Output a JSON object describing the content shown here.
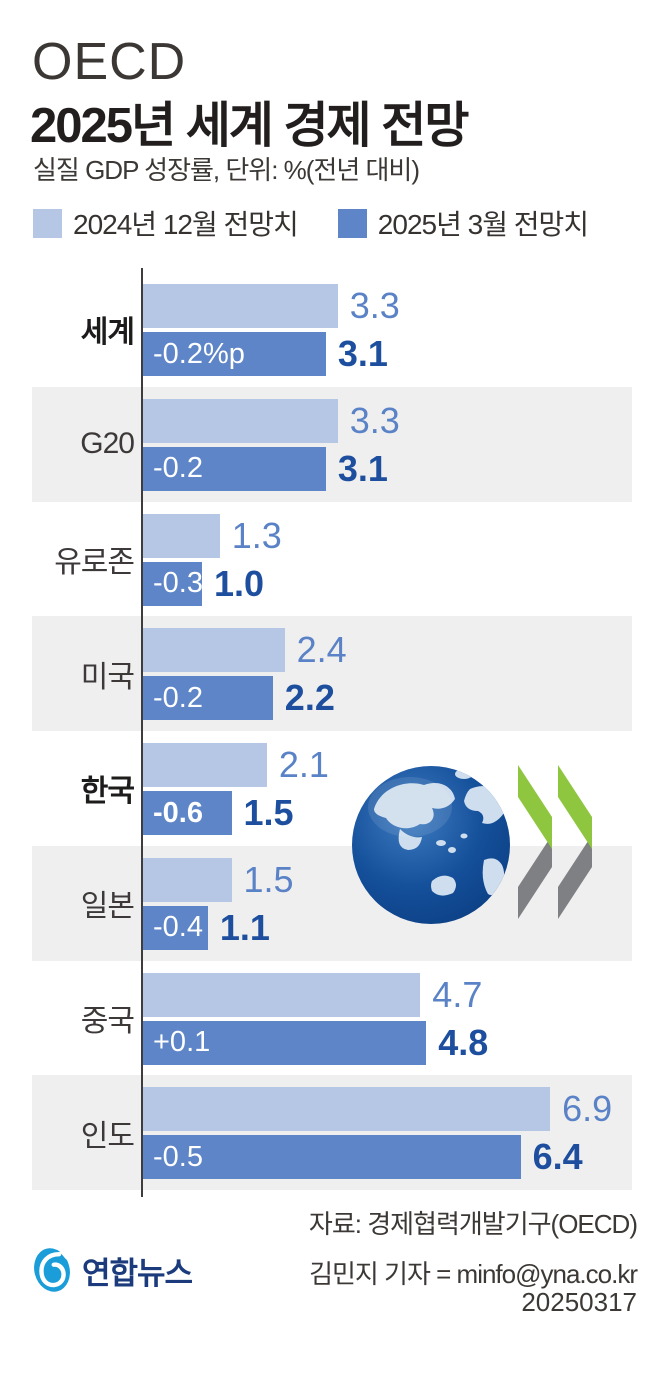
{
  "header": {
    "kicker": "OECD",
    "title": "2025년 세계 경제 전망",
    "subtitle": "실질 GDP 성장률, 단위: %(전년 대비)"
  },
  "legend": [
    {
      "label": "2024년 12월 전망치",
      "color": "#b5c7e5"
    },
    {
      "label": "2025년 3월 전망치",
      "color": "#5d85c7"
    }
  ],
  "chart_data": {
    "type": "bar",
    "orientation": "horizontal",
    "title": "2025년 세계 경제 전망",
    "unit": "%(전년 대비)",
    "xlim": [
      0,
      7.5
    ],
    "grid": false,
    "legend_position": "top",
    "categories": [
      "세계",
      "G20",
      "유로존",
      "미국",
      "한국",
      "일본",
      "중국",
      "인도"
    ],
    "series": [
      {
        "name": "2024년 12월 전망치",
        "values": [
          3.3,
          3.3,
          1.3,
          2.4,
          2.1,
          1.5,
          4.7,
          6.9
        ]
      },
      {
        "name": "2025년 3월 전망치",
        "values": [
          3.1,
          3.1,
          1.0,
          2.2,
          1.5,
          1.1,
          4.8,
          6.4
        ]
      }
    ],
    "change_labels": [
      "-0.2%p",
      "-0.2",
      "-0.3",
      "-0.2",
      "-0.6",
      "-0.4",
      "+0.1",
      "-0.5"
    ],
    "rows": [
      {
        "label": "세계",
        "bold": true,
        "dec": 3.3,
        "mar": 3.1,
        "change": "-0.2%p",
        "change_bold": false,
        "shaded": false
      },
      {
        "label": "G20",
        "bold": false,
        "dec": 3.3,
        "mar": 3.1,
        "change": "-0.2",
        "change_bold": false,
        "shaded": true
      },
      {
        "label": "유로존",
        "bold": false,
        "dec": 1.3,
        "mar": 1.0,
        "change": "-0.3",
        "change_bold": false,
        "shaded": false
      },
      {
        "label": "미국",
        "bold": false,
        "dec": 2.4,
        "mar": 2.2,
        "change": "-0.2",
        "change_bold": false,
        "shaded": true
      },
      {
        "label": "한국",
        "bold": true,
        "dec": 2.1,
        "mar": 1.5,
        "change": "-0.6",
        "change_bold": true,
        "shaded": false
      },
      {
        "label": "일본",
        "bold": false,
        "dec": 1.5,
        "mar": 1.1,
        "change": "-0.4",
        "change_bold": false,
        "shaded": true
      },
      {
        "label": "중국",
        "bold": false,
        "dec": 4.7,
        "mar": 4.8,
        "change": "+0.1",
        "change_bold": false,
        "shaded": false
      },
      {
        "label": "인도",
        "bold": false,
        "dec": 6.9,
        "mar": 6.4,
        "change": "-0.5",
        "change_bold": false,
        "shaded": true
      }
    ]
  },
  "footer": {
    "source": "자료: 경제협력개발기구(OECD)",
    "credit": "김민지 기자 = minfo@yna.co.kr",
    "date": "20250317",
    "logo_text": "연합뉴스"
  },
  "colors": {
    "bar_light": "#b5c7e5",
    "bar_dark": "#5d85c7",
    "value_light": "#5a82c6",
    "value_dark": "#1d4f9e",
    "inbar_text": "#ffffff",
    "row_shade": "#f0efef",
    "axis": "#3e3c3c",
    "title_text": "#221e1e",
    "kicker_text": "#3b3735",
    "body_text": "#3c3835",
    "chevron_green": "#8ec63f",
    "chevron_gray": "#7e8083",
    "globe_blue": "#15509b",
    "continent_light": "#cfdeee",
    "yonhap_navy": "#1b3b7c",
    "yonhap_blue": "#1b9dd9"
  }
}
